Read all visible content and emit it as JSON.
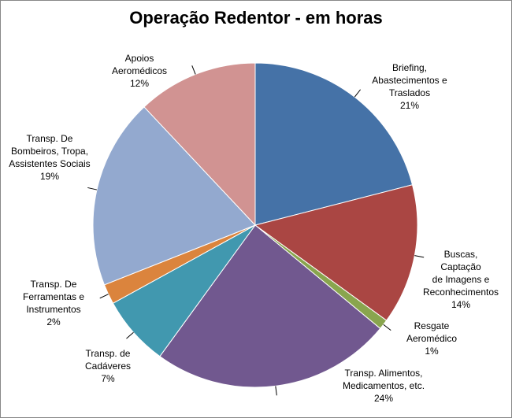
{
  "chart_data": {
    "type": "pie",
    "title": "Operação Redentor - em horas",
    "categories": [
      "Briefing,\nAbastecimentos e\nTraslados",
      "Buscas, Captação\nde Imagens e\nReconhecimentos",
      "Resgate\nAeromédico",
      "Transp. Alimentos,\nMedicamentos, etc.",
      "Transp. de\nCadáveres",
      "Transp. De\nFerramentas e\nInstrumentos",
      "Transp. De\nBombeiros, Tropa,\nAssistentes Sociais",
      "Apoios\nAeromédicos"
    ],
    "values": [
      21,
      14,
      1,
      24,
      7,
      2,
      19,
      12
    ],
    "value_labels": [
      "21%",
      "14%",
      "1%",
      "24%",
      "7%",
      "2%",
      "19%",
      "12%"
    ],
    "colors": [
      "#4572a7",
      "#aa4643",
      "#89a54e",
      "#71588f",
      "#4198af",
      "#db843d",
      "#93a9cf",
      "#d19392"
    ]
  }
}
